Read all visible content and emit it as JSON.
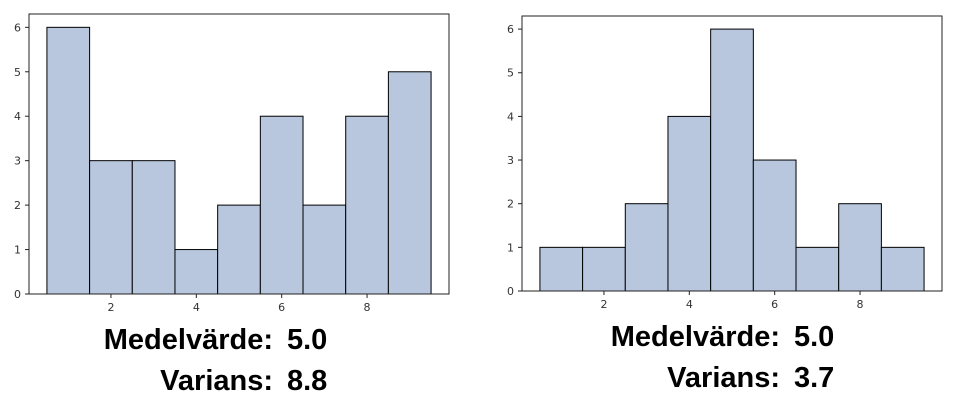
{
  "chart_data": [
    {
      "type": "bar",
      "bins": [
        [
          0.5,
          1.5
        ],
        [
          1.5,
          2.5
        ],
        [
          2.5,
          3.5
        ],
        [
          3.5,
          4.5
        ],
        [
          4.5,
          5.5
        ],
        [
          5.5,
          6.5
        ],
        [
          6.5,
          7.5
        ],
        [
          7.5,
          8.5
        ],
        [
          8.5,
          9.5
        ]
      ],
      "values": [
        6,
        3,
        3,
        1,
        2,
        4,
        2,
        4,
        5
      ],
      "xticks": [
        2,
        4,
        6,
        8
      ],
      "yticks": [
        0,
        1,
        2,
        3,
        4,
        5,
        6
      ],
      "xlim": [
        0.08,
        9.92
      ],
      "ylim": [
        0,
        6.3
      ],
      "bar_color": "#b8c7de",
      "edge_color": "#000000",
      "grid": false,
      "stats": {
        "mean_label": "Medelvärde:",
        "mean_value": "5.0",
        "var_label": "Varians:",
        "var_value": "8.8"
      }
    },
    {
      "type": "bar",
      "bins": [
        [
          0.5,
          1.5
        ],
        [
          1.5,
          2.5
        ],
        [
          2.5,
          3.5
        ],
        [
          3.5,
          4.5
        ],
        [
          4.5,
          5.5
        ],
        [
          5.5,
          6.5
        ],
        [
          6.5,
          7.5
        ],
        [
          7.5,
          8.5
        ],
        [
          8.5,
          9.5
        ]
      ],
      "values": [
        1,
        1,
        2,
        4,
        6,
        3,
        1,
        2,
        1
      ],
      "xticks": [
        2,
        4,
        6,
        8
      ],
      "yticks": [
        0,
        1,
        2,
        3,
        4,
        5,
        6
      ],
      "xlim": [
        0.08,
        9.92
      ],
      "ylim": [
        0,
        6.3
      ],
      "bar_color": "#b8c7de",
      "edge_color": "#000000",
      "grid": false,
      "stats": {
        "mean_label": "Medelvärde:",
        "mean_value": "5.0",
        "var_label": "Varians:",
        "var_value": "3.7"
      }
    }
  ]
}
